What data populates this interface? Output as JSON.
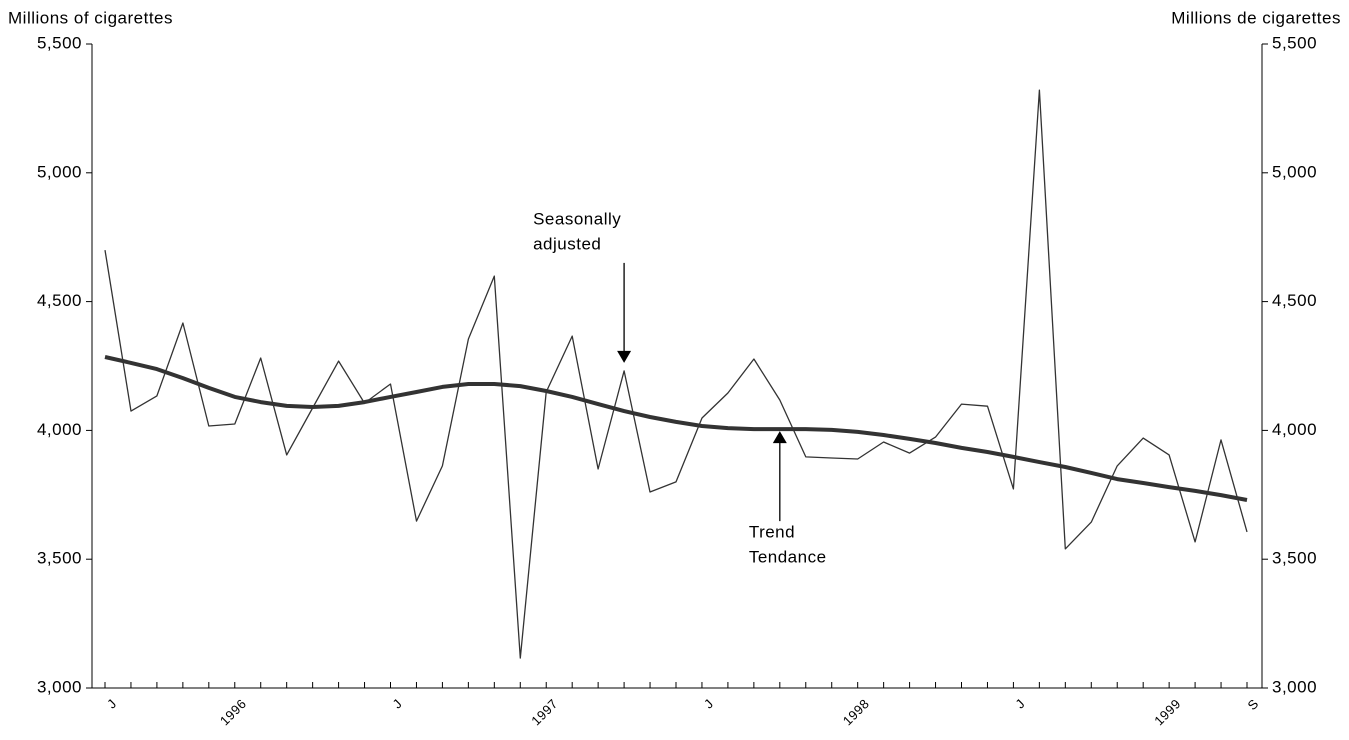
{
  "chart_data": {
    "type": "line",
    "y_label": "Millions of cigarettes",
    "y2_label": "Millions de cigarettes",
    "categories": [
      "J",
      null,
      null,
      null,
      null,
      "1996",
      null,
      null,
      null,
      null,
      null,
      "J",
      null,
      null,
      null,
      null,
      null,
      "1997",
      null,
      null,
      null,
      null,
      null,
      "J",
      null,
      null,
      null,
      null,
      null,
      "1998",
      null,
      null,
      null,
      null,
      null,
      "J",
      null,
      null,
      null,
      null,
      null,
      "1999",
      null,
      null,
      "S"
    ],
    "series": [
      {
        "color": "#333333",
        "values": [
          4700,
          4075,
          4134,
          4417,
          4017,
          4025,
          4281,
          3905,
          4087,
          4269,
          4106,
          4180,
          3648,
          3862,
          4355,
          4599,
          3116,
          4149,
          4366,
          3850,
          4231,
          3761,
          3800,
          4048,
          4145,
          4277,
          4118,
          3897,
          3893,
          3889,
          3955,
          3912,
          3974,
          4102,
          4094,
          3773,
          5321,
          3540,
          3644,
          3862,
          3970,
          3905,
          3567,
          3963,
          3606
        ]
      },
      {
        "color": "#333333",
        "values": [
          4285,
          4262,
          4238,
          4203,
          4165,
          4130,
          4110,
          4095,
          4091,
          4095,
          4110,
          4130,
          4149,
          4169,
          4180,
          4180,
          4172,
          4153,
          4130,
          4102,
          4075,
          4052,
          4033,
          4017,
          4009,
          4005,
          4005,
          4005,
          4002,
          3994,
          3982,
          3967,
          3951,
          3932,
          3916,
          3897,
          3877,
          3858,
          3835,
          3811,
          3796,
          3780,
          3765,
          3749,
          3730
        ]
      }
    ],
    "annotations": [
      {
        "text": [
          "Seasonally",
          "adjusted"
        ],
        "series": 0,
        "index": 20
      },
      {
        "text": [
          "Trend",
          "Tendance"
        ],
        "series": 1,
        "index": 26
      }
    ],
    "ylim": [
      3000,
      5500
    ],
    "yticks": [
      {
        "value": 3000,
        "label": "3,000"
      },
      {
        "value": 3500,
        "label": "3,500"
      },
      {
        "value": 4000,
        "label": "4,000"
      },
      {
        "value": 4500,
        "label": "4,500"
      },
      {
        "value": 5000,
        "label": "5,000"
      },
      {
        "value": 5500,
        "label": "5,500"
      }
    ],
    "y2lim": [
      3000,
      5500
    ],
    "y2ticks": [
      {
        "value": 3000,
        "label": "3,000"
      },
      {
        "value": 3500,
        "label": "3,500"
      },
      {
        "value": 4000,
        "label": "4,000"
      },
      {
        "value": 4500,
        "label": "4,500"
      },
      {
        "value": 5000,
        "label": "5,000"
      },
      {
        "value": 5500,
        "label": "5,500"
      }
    ]
  }
}
